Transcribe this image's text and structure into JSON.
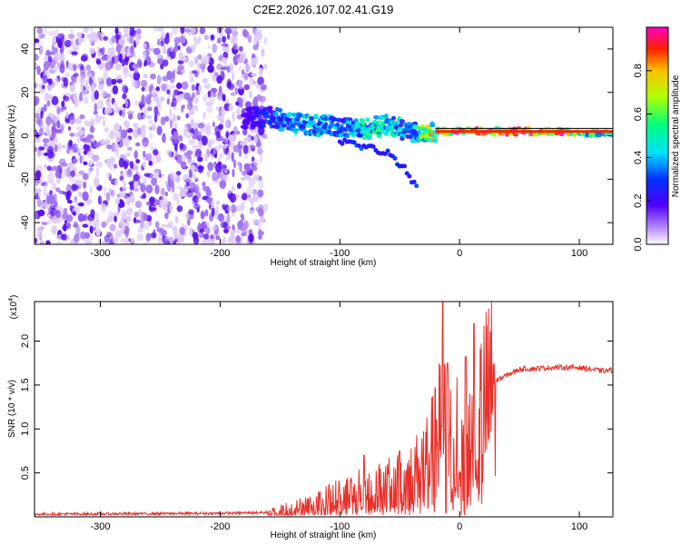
{
  "title": "C2E2.2026.107.02.41.G19",
  "colors": {
    "signal_strong": "#ff2a2a",
    "signal_mid": "#18e8c0",
    "signal_low": "#5a1aff",
    "noise": "#c8a8f4",
    "snr_line": "#e8302a"
  },
  "chart_data": [
    {
      "type": "heatmap",
      "name": "spectrogram",
      "xlabel": "Height of straight line (km)",
      "ylabel": "Frequency (Hz)",
      "xlim": [
        -355,
        128
      ],
      "ylim": [
        -50,
        50
      ],
      "xticks": [
        -300,
        -200,
        -100,
        0,
        100
      ],
      "yticks": [
        -40,
        -20,
        0,
        20,
        40
      ],
      "colorbar": {
        "label": "Normalized spectral amplitude",
        "range": [
          0.0,
          1.0
        ],
        "ticks": [
          0.0,
          0.2,
          0.4,
          0.6,
          0.8
        ],
        "tick_labels": [
          "0.0",
          "0.2",
          "0.4",
          "0.6",
          "0.8"
        ],
        "colormap": "rainbow"
      },
      "noise_region": {
        "x_from": -355,
        "x_to": -162,
        "y_from": -50,
        "y_to": 50
      },
      "signal_track": {
        "x": [
          -180,
          -160,
          -140,
          -120,
          -100,
          -80,
          -60,
          -40,
          -20,
          0,
          20,
          40,
          60,
          80,
          100,
          128
        ],
        "y": [
          8,
          9,
          6,
          5,
          4,
          3,
          5,
          2,
          2,
          2,
          2,
          2,
          2,
          2,
          1,
          1
        ],
        "amplitude": [
          0.15,
          0.3,
          0.4,
          0.45,
          0.35,
          0.5,
          0.5,
          0.4,
          0.8,
          0.9,
          0.92,
          0.9,
          0.9,
          0.92,
          0.6,
          0.5
        ]
      },
      "branch_track": {
        "x": [
          -100,
          -80,
          -60,
          -45,
          -35
        ],
        "y": [
          -2,
          -5,
          -8,
          -15,
          -25
        ]
      }
    },
    {
      "type": "line",
      "name": "snr",
      "xlabel": "Height of straight line (km)",
      "ylabel": "SNR (10 * v/v)",
      "scale_note": "(x10",
      "scale_exp": "4",
      "scale_close": ")",
      "xlim": [
        -355,
        128
      ],
      "ylim": [
        0.0,
        2.45
      ],
      "xticks": [
        -300,
        -200,
        -100,
        0,
        100
      ],
      "yticks": [
        0.5,
        1.0,
        1.5,
        2.0
      ],
      "ytick_labels": [
        "0.5",
        "1.0",
        "1.5",
        "2.0"
      ],
      "envelope": {
        "x": [
          -355,
          -200,
          -160,
          -120,
          -100,
          -80,
          -60,
          -40,
          -30,
          -20,
          -15,
          -10,
          0,
          10,
          20,
          30,
          50,
          80,
          100,
          110,
          120,
          128
        ],
        "y": [
          0.03,
          0.04,
          0.05,
          0.15,
          0.25,
          0.3,
          0.35,
          0.45,
          0.6,
          0.8,
          1.05,
          0.9,
          0.85,
          0.95,
          1.2,
          1.55,
          1.68,
          1.7,
          1.7,
          1.68,
          1.66,
          1.67
        ]
      },
      "peaks": [
        {
          "x": -14,
          "y": 2.45
        },
        {
          "x": -10,
          "y": 1.75
        },
        {
          "x": 5,
          "y": 1.82
        },
        {
          "x": 12,
          "y": 2.2
        },
        {
          "x": -50,
          "y": 0.75
        },
        {
          "x": -80,
          "y": 0.7
        }
      ]
    }
  ]
}
